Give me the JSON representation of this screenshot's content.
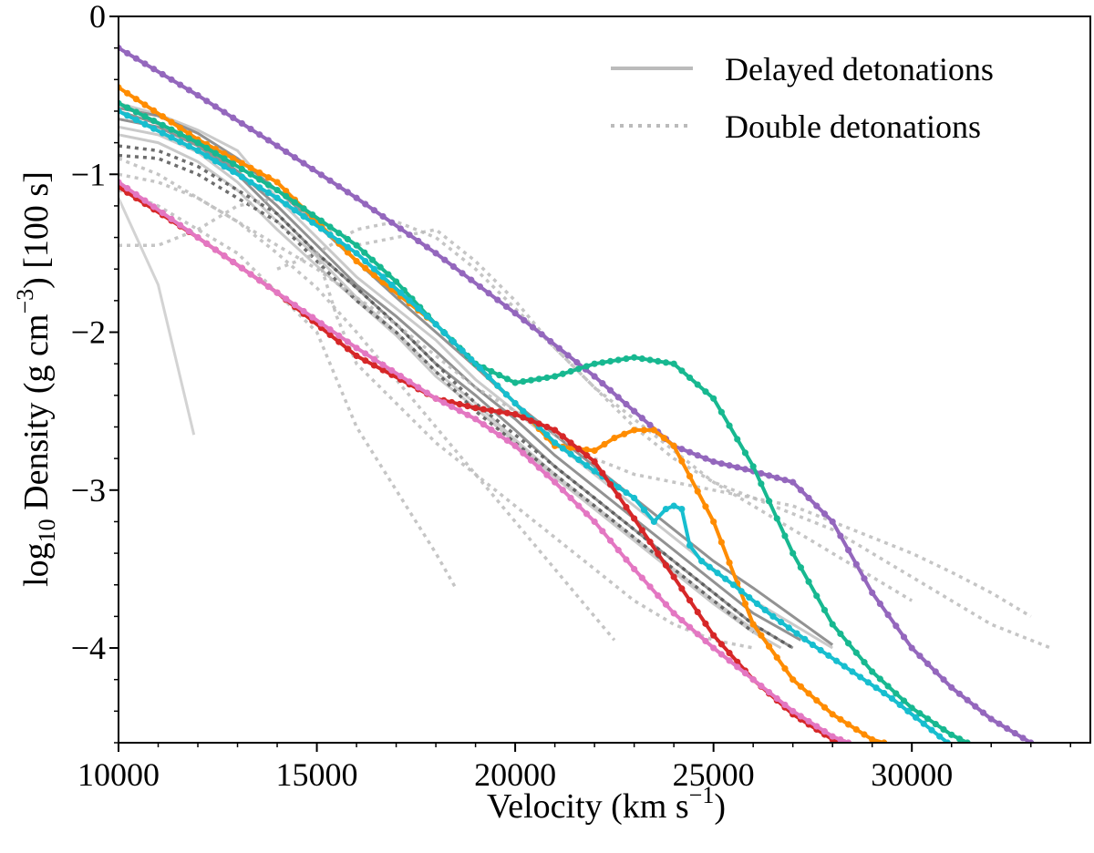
{
  "chart_data": {
    "type": "line",
    "title": "",
    "xlabel": "Velocity (km s",
    "xlabel_sup": "−1",
    "xlabel_close": ")",
    "ylabel_log": "log",
    "ylabel_log_sub": "10",
    "ylabel_main": " Density (g cm",
    "ylabel_sup": "−3",
    "ylabel_tail": ") [100 s]",
    "xlim": [
      10000,
      34500
    ],
    "ylim": [
      -4.6,
      0
    ],
    "x_ticks": [
      10000,
      15000,
      20000,
      25000,
      30000
    ],
    "x_tick_labels": [
      "10000",
      "15000",
      "20000",
      "25000",
      "30000"
    ],
    "y_ticks": [
      0,
      -1,
      -2,
      -3,
      -4
    ],
    "y_tick_labels": [
      "0",
      "−1",
      "−2",
      "−3",
      "−4"
    ],
    "legend": {
      "position": "top-right",
      "entries": [
        {
          "label": "Delayed detonations",
          "style": "solid",
          "color": "#bbbbbb"
        },
        {
          "label": "Double detonations",
          "style": "dotted",
          "color": "#bbbbbb"
        }
      ]
    },
    "background_delayed": [
      {
        "x": [
          10000,
          11000,
          12000,
          13000,
          14000,
          15000,
          16000,
          17000,
          18000,
          19000,
          20000,
          21000,
          22000,
          23000,
          24000,
          25000,
          26000,
          27000,
          28000
        ],
        "y": [
          -0.55,
          -0.62,
          -0.72,
          -0.85,
          -1.15,
          -1.4,
          -1.65,
          -1.85,
          -2.05,
          -2.3,
          -2.5,
          -2.7,
          -2.9,
          -3.1,
          -3.3,
          -3.5,
          -3.7,
          -3.85,
          -4.0
        ]
      },
      {
        "x": [
          10000,
          11000,
          12000,
          13000,
          14000,
          15000,
          16000,
          17000,
          18000,
          19000,
          20000,
          21000,
          22000,
          23000,
          24000,
          25000,
          26000,
          27000
        ],
        "y": [
          -0.65,
          -0.7,
          -0.82,
          -1.0,
          -1.25,
          -1.5,
          -1.72,
          -1.95,
          -2.2,
          -2.4,
          -2.62,
          -2.85,
          -3.05,
          -3.25,
          -3.45,
          -3.65,
          -3.85,
          -4.0
        ]
      },
      {
        "x": [
          10000,
          11000,
          12000,
          13000,
          14000,
          15000,
          16000,
          17000,
          18000,
          19000,
          20000,
          21000,
          22000,
          23000,
          24000,
          25000,
          26000,
          26700
        ],
        "y": [
          -0.75,
          -0.8,
          -0.92,
          -1.1,
          -1.35,
          -1.58,
          -1.8,
          -2.02,
          -2.28,
          -2.48,
          -2.7,
          -2.92,
          -3.12,
          -3.32,
          -3.52,
          -3.72,
          -3.9,
          -4.0
        ]
      },
      {
        "x": [
          10000,
          11000,
          12000,
          13000,
          14000,
          15000,
          16000,
          17000,
          18000,
          19000,
          20000,
          21000,
          22000,
          23000,
          24000,
          25000,
          26000,
          27200
        ],
        "y": [
          -0.6,
          -0.68,
          -0.8,
          -0.98,
          -1.2,
          -1.45,
          -1.7,
          -1.9,
          -2.12,
          -2.35,
          -2.55,
          -2.78,
          -2.98,
          -3.18,
          -3.38,
          -3.58,
          -3.78,
          -3.95
        ]
      },
      {
        "x": [
          10000,
          11000,
          12000,
          13000,
          14000,
          15000,
          16000,
          17000,
          18000,
          19000,
          20000,
          21000,
          22000,
          23000,
          24000,
          25000,
          26000,
          26400
        ],
        "y": [
          -0.7,
          -0.75,
          -0.86,
          -1.05,
          -1.3,
          -1.52,
          -1.78,
          -2.0,
          -2.25,
          -2.45,
          -2.68,
          -2.9,
          -3.1,
          -3.3,
          -3.5,
          -3.7,
          -3.88,
          -3.98
        ]
      },
      {
        "x": [
          10000,
          11000,
          12000,
          13000,
          14000,
          15000,
          16000,
          17000,
          18000,
          19000,
          20000,
          21000,
          22000,
          23000,
          24000,
          25000,
          26000,
          27000,
          28000
        ],
        "y": [
          -0.58,
          -0.63,
          -0.74,
          -0.9,
          -1.1,
          -1.32,
          -1.55,
          -1.78,
          -2.0,
          -2.22,
          -2.45,
          -2.65,
          -2.85,
          -3.05,
          -3.25,
          -3.45,
          -3.62,
          -3.8,
          -3.98
        ]
      },
      {
        "x": [
          10000,
          11000,
          11900
        ],
        "y": [
          -1.15,
          -1.7,
          -2.65
        ]
      }
    ],
    "background_double": [
      {
        "x": [
          10000,
          11000,
          12000,
          13000,
          14000,
          15000,
          16000,
          17000,
          18000,
          19000,
          20000,
          21000,
          22000,
          23000,
          24000,
          25000,
          26000,
          27000
        ],
        "y": [
          -0.82,
          -0.85,
          -0.95,
          -1.1,
          -1.25,
          -1.5,
          -1.72,
          -1.95,
          -2.2,
          -2.45,
          -2.65,
          -2.85,
          -3.05,
          -3.25,
          -3.45,
          -3.65,
          -3.85,
          -4.0
        ]
      },
      {
        "x": [
          10000,
          11000,
          12000,
          13000,
          14000,
          15000,
          16000,
          17000,
          18000,
          19000,
          20000,
          21000,
          22000,
          23000,
          24000,
          25000,
          26000
        ],
        "y": [
          -0.88,
          -0.9,
          -1.0,
          -1.15,
          -1.3,
          -1.55,
          -1.8,
          -2.0,
          -2.25,
          -2.5,
          -2.7,
          -2.9,
          -3.1,
          -3.3,
          -3.5,
          -3.7,
          -3.9
        ]
      },
      {
        "x": [
          10000,
          11000,
          12000,
          13000,
          14000,
          15000,
          16000,
          17000,
          18000,
          19000,
          20000,
          21000,
          22000,
          23000,
          24000,
          25000,
          26000,
          27000,
          28000,
          29000,
          30000,
          31000,
          32000,
          33500
        ],
        "y": [
          -1.45,
          -1.45,
          -1.35,
          -1.2,
          -1.15,
          -1.3,
          -1.45,
          -1.4,
          -1.35,
          -1.55,
          -1.8,
          -2.1,
          -2.35,
          -2.6,
          -2.8,
          -2.95,
          -3.05,
          -3.15,
          -3.25,
          -3.4,
          -3.55,
          -3.7,
          -3.85,
          -4.0
        ]
      },
      {
        "x": [
          10000,
          11000,
          12000,
          13000,
          14000,
          15000,
          15500,
          16000,
          17000,
          18000,
          18500
        ],
        "y": [
          -1.1,
          -1.2,
          -1.35,
          -1.5,
          -1.75,
          -2.0,
          -2.3,
          -2.6,
          -3.0,
          -3.4,
          -3.62
        ]
      },
      {
        "x": [
          10000,
          11000,
          12000,
          13000,
          14000,
          15000,
          16000,
          17000,
          18000,
          19000,
          20000,
          21000,
          22000,
          23000,
          24000,
          25000,
          26000,
          27000,
          28000,
          29000,
          30000,
          31000,
          32000,
          33000
        ],
        "y": [
          -1.0,
          -1.05,
          -1.15,
          -1.3,
          -1.45,
          -1.6,
          -1.78,
          -1.95,
          -2.15,
          -2.35,
          -2.5,
          -2.65,
          -2.8,
          -2.9,
          -2.95,
          -3.0,
          -3.05,
          -3.1,
          -3.2,
          -3.3,
          -3.4,
          -3.52,
          -3.65,
          -3.8
        ]
      },
      {
        "x": [
          10000,
          11000,
          12000,
          13000,
          14000,
          15000,
          16000,
          17000,
          18000,
          19000,
          20000,
          21000,
          22000,
          22500
        ],
        "y": [
          -0.9,
          -1.0,
          -1.15,
          -1.3,
          -1.5,
          -1.72,
          -2.0,
          -2.3,
          -2.6,
          -2.9,
          -3.2,
          -3.5,
          -3.8,
          -3.95
        ]
      },
      {
        "x": [
          15000,
          15500,
          16000,
          17000,
          18000,
          19000,
          20000,
          21000,
          22000,
          23000,
          24000,
          25000,
          26000
        ],
        "y": [
          -1.5,
          -1.9,
          -2.2,
          -2.45,
          -2.7,
          -2.9,
          -3.1,
          -3.3,
          -3.5,
          -3.7,
          -3.85,
          -3.95,
          -4.0
        ]
      },
      {
        "x": [
          14000,
          15000,
          16000,
          17000,
          18000,
          19000,
          20000,
          21000,
          22000,
          23000,
          24000,
          25000,
          26000,
          27000,
          28000,
          29000,
          30000
        ],
        "y": [
          -1.6,
          -1.5,
          -1.35,
          -1.3,
          -1.4,
          -1.6,
          -1.85,
          -2.1,
          -2.35,
          -2.55,
          -2.75,
          -2.95,
          -3.1,
          -3.25,
          -3.4,
          -3.55,
          -3.7
        ]
      }
    ],
    "series": [
      {
        "name": "purple",
        "color": "#9467bd",
        "x": [
          10000,
          12000,
          14000,
          16000,
          18000,
          20000,
          22000,
          23000,
          24000,
          25000,
          26000,
          27000,
          28000,
          29000,
          30000,
          31000,
          32000,
          33000
        ],
        "y": [
          -0.2,
          -0.5,
          -0.82,
          -1.15,
          -1.5,
          -1.88,
          -2.28,
          -2.5,
          -2.72,
          -2.82,
          -2.88,
          -2.95,
          -3.2,
          -3.65,
          -4.0,
          -4.25,
          -4.45,
          -4.6
        ]
      },
      {
        "name": "orange",
        "color": "#ff8c00",
        "x": [
          10000,
          12000,
          14000,
          16000,
          18000,
          20000,
          21000,
          22000,
          22500,
          23000,
          23500,
          24000,
          25000,
          26000,
          27000,
          28000,
          29000,
          29300
        ],
        "y": [
          -0.45,
          -0.78,
          -1.05,
          -1.55,
          -1.95,
          -2.45,
          -2.72,
          -2.75,
          -2.67,
          -2.62,
          -2.62,
          -2.72,
          -3.2,
          -3.85,
          -4.2,
          -4.42,
          -4.58,
          -4.6
        ]
      },
      {
        "name": "teal",
        "color": "#17b890",
        "x": [
          10000,
          12000,
          14000,
          16000,
          17000,
          18000,
          19000,
          20000,
          21000,
          22000,
          23000,
          24000,
          25000,
          26000,
          27000,
          28000,
          29000,
          30000,
          31000,
          31400
        ],
        "y": [
          -0.55,
          -0.8,
          -1.1,
          -1.45,
          -1.68,
          -1.95,
          -2.2,
          -2.32,
          -2.28,
          -2.2,
          -2.16,
          -2.2,
          -2.42,
          -2.85,
          -3.4,
          -3.85,
          -4.15,
          -4.38,
          -4.55,
          -4.6
        ]
      },
      {
        "name": "cyan",
        "color": "#17becf",
        "x": [
          10000,
          12000,
          14000,
          16000,
          18000,
          20000,
          21000,
          22000,
          23000,
          23500,
          23800,
          24000,
          24200,
          24400,
          24700,
          25500,
          26500,
          27500,
          28500,
          29500,
          30500,
          30900
        ],
        "y": [
          -0.6,
          -0.85,
          -1.15,
          -1.5,
          -1.95,
          -2.45,
          -2.7,
          -2.88,
          -3.05,
          -3.2,
          -3.12,
          -3.1,
          -3.12,
          -3.35,
          -3.45,
          -3.6,
          -3.8,
          -3.98,
          -4.15,
          -4.32,
          -4.52,
          -4.6
        ]
      },
      {
        "name": "red",
        "color": "#d62728",
        "x": [
          10000,
          12000,
          14000,
          16000,
          18000,
          19000,
          20000,
          21000,
          22000,
          23000,
          24000,
          25000,
          26000,
          27000,
          28000,
          28300
        ],
        "y": [
          -1.08,
          -1.4,
          -1.75,
          -2.15,
          -2.42,
          -2.48,
          -2.52,
          -2.62,
          -2.82,
          -3.18,
          -3.55,
          -3.92,
          -4.2,
          -4.42,
          -4.58,
          -4.6
        ]
      },
      {
        "name": "pink",
        "color": "#e377c2",
        "x": [
          10000,
          12000,
          14000,
          16000,
          18000,
          19000,
          20000,
          21000,
          22000,
          23000,
          24000,
          25000,
          26000,
          27000,
          28000,
          28400
        ],
        "y": [
          -1.05,
          -1.4,
          -1.75,
          -2.1,
          -2.42,
          -2.55,
          -2.72,
          -2.95,
          -3.2,
          -3.5,
          -3.78,
          -4.0,
          -4.2,
          -4.4,
          -4.56,
          -4.6
        ]
      }
    ]
  }
}
